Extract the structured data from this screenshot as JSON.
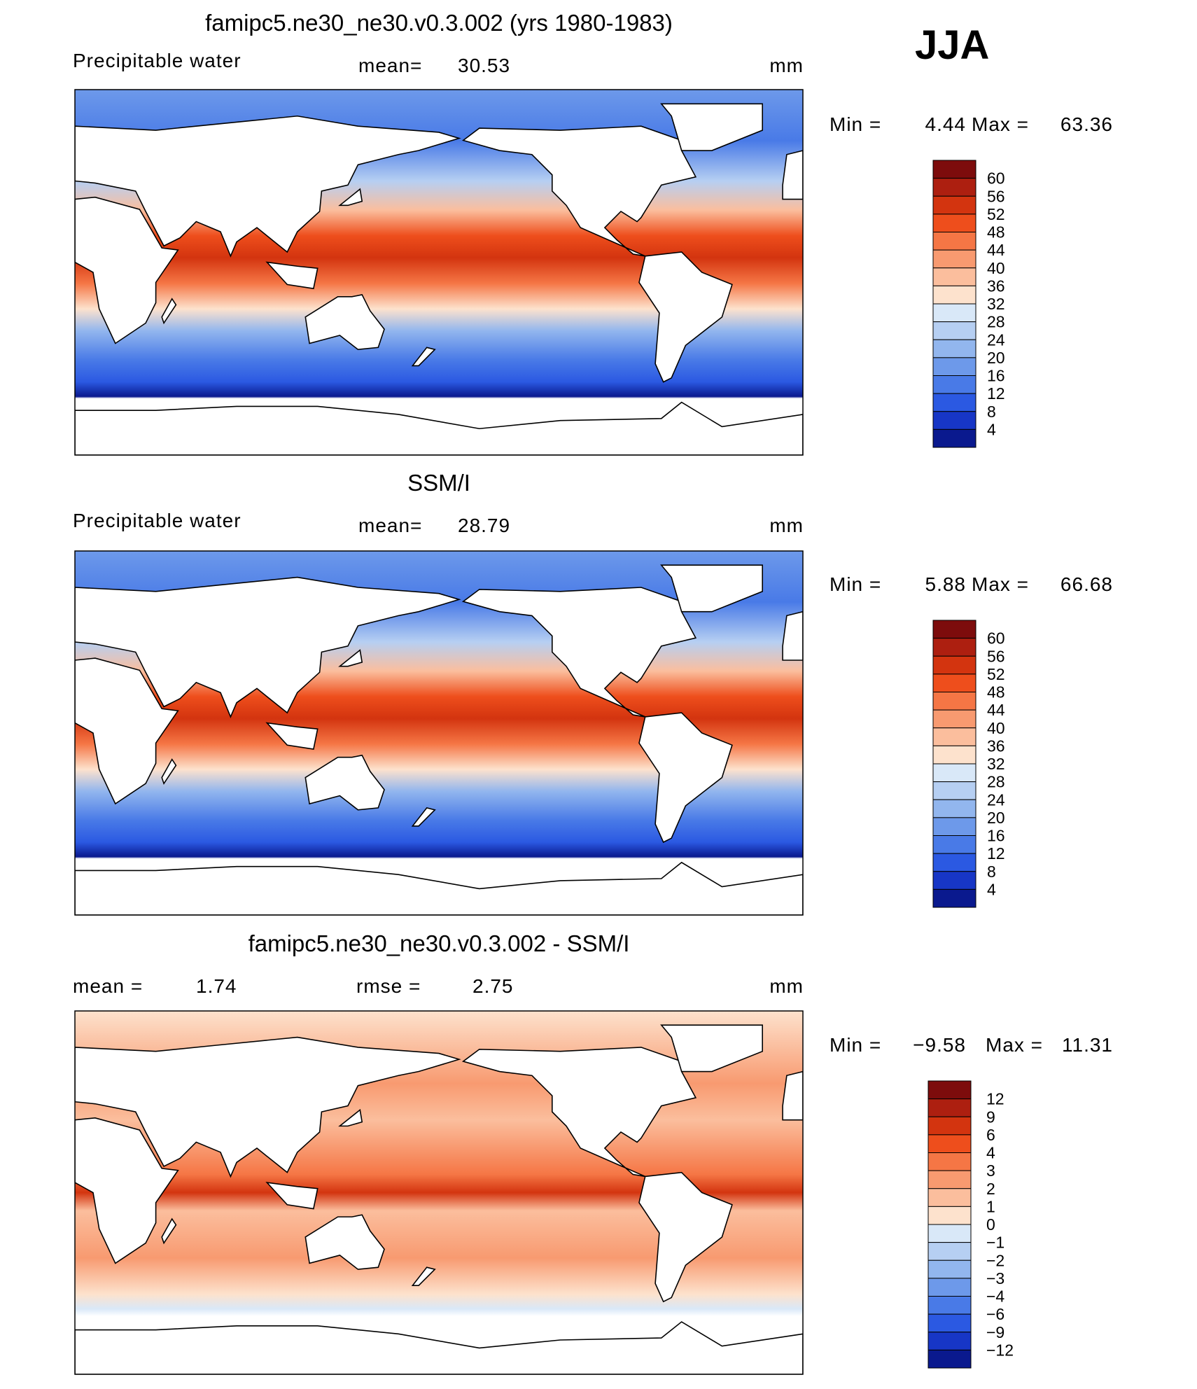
{
  "season": "JJA",
  "panels": [
    {
      "title": "famipc5.ne30_ne30.v0.3.002 (yrs 1980-1983)",
      "variable": "Precipitable water",
      "mean_label": "mean=",
      "mean": 30.53,
      "units": "mm",
      "min_label": "Min =",
      "min": 4.44,
      "max_label": "Max =",
      "max": 63.36,
      "levels": [
        60,
        56,
        52,
        48,
        44,
        40,
        36,
        32,
        28,
        24,
        20,
        16,
        12,
        8,
        4
      ],
      "colors": [
        "#7d0c0c",
        "#ad1f10",
        "#d3340f",
        "#ee4e1c",
        "#f57645",
        "#f89a70",
        "#fbbe9d",
        "#fde2cd",
        "#d9e8f8",
        "#b6cff2",
        "#92b6ee",
        "#6d99ea",
        "#497ae7",
        "#2b59e2",
        "#1736c6",
        "#0a198e"
      ]
    },
    {
      "title": "SSM/I",
      "variable": "Precipitable water",
      "mean_label": "mean=",
      "mean": 28.79,
      "units": "mm",
      "min_label": "Min =",
      "min": 5.88,
      "max_label": "Max =",
      "max": 66.68,
      "levels": [
        60,
        56,
        52,
        48,
        44,
        40,
        36,
        32,
        28,
        24,
        20,
        16,
        12,
        8,
        4
      ],
      "colors": [
        "#7d0c0c",
        "#ad1f10",
        "#d3340f",
        "#ee4e1c",
        "#f57645",
        "#f89a70",
        "#fbbe9d",
        "#fde2cd",
        "#d9e8f8",
        "#b6cff2",
        "#92b6ee",
        "#6d99ea",
        "#497ae7",
        "#2b59e2",
        "#1736c6",
        "#0a198e"
      ]
    },
    {
      "title": "famipc5.ne30_ne30.v0.3.002 - SSM/I",
      "mean_label": "mean =",
      "mean": 1.74,
      "rmse_label": "rmse =",
      "rmse": 2.75,
      "units": "mm",
      "min_label": "Min =",
      "min": "−9.58",
      "max_label": "Max =",
      "max": 11.31,
      "levels": [
        12,
        9,
        6,
        4,
        3,
        2,
        1,
        0,
        "−1",
        "−2",
        "−3",
        "−4",
        "−6",
        "−9",
        "−12"
      ],
      "colors": [
        "#7d0c0c",
        "#ad1f10",
        "#d3340f",
        "#ee4e1c",
        "#f57645",
        "#f89a70",
        "#fbbe9d",
        "#fde2cd",
        "#d9e8f8",
        "#b6cff2",
        "#92b6ee",
        "#6d99ea",
        "#497ae7",
        "#2b59e2",
        "#1736c6",
        "#0a198e"
      ]
    }
  ]
}
